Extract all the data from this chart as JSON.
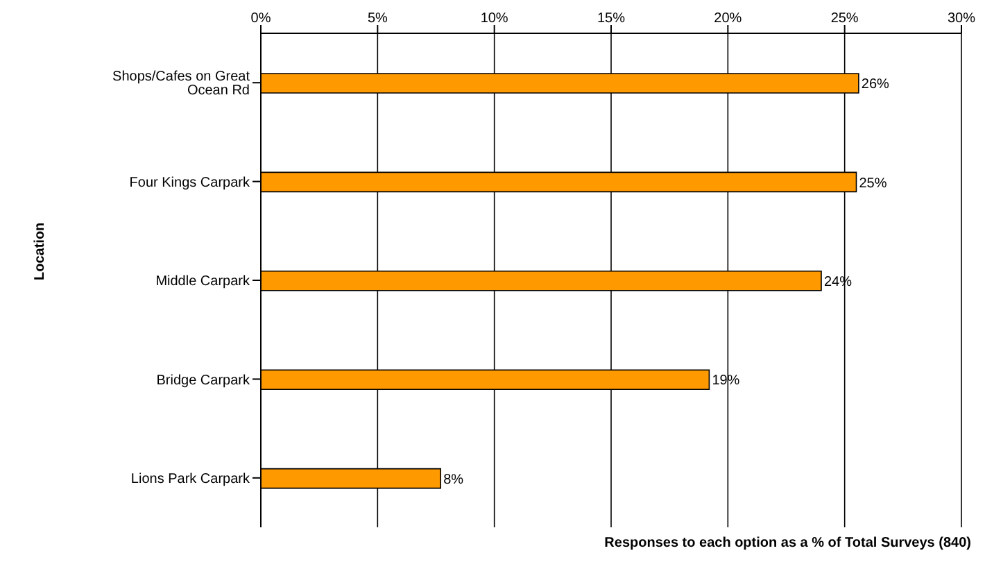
{
  "chart_data": {
    "type": "bar",
    "orientation": "horizontal",
    "xlabel": "Responses to each option as a % of Total Surveys (840)",
    "ylabel": "Location",
    "categories": [
      "Shops/Cafes on Great Ocean Rd",
      "Four Kings Carpark",
      "Middle Carpark",
      "Bridge Carpark",
      "Lions Park Carpark"
    ],
    "values": [
      25.6,
      25.5,
      24.0,
      19.2,
      7.7
    ],
    "value_labels": [
      "26%",
      "25%",
      "24%",
      "19%",
      "8%"
    ],
    "color": "#ff9900",
    "xlim": [
      0,
      30
    ],
    "xticks": [
      {
        "value": 0,
        "label": "0%"
      },
      {
        "value": 5,
        "label": "5%"
      },
      {
        "value": 10,
        "label": "10%"
      },
      {
        "value": 15,
        "label": "15%"
      },
      {
        "value": 20,
        "label": "20%"
      },
      {
        "value": 25,
        "label": "25%"
      },
      {
        "value": 30,
        "label": "30%"
      }
    ],
    "grid": "x"
  }
}
